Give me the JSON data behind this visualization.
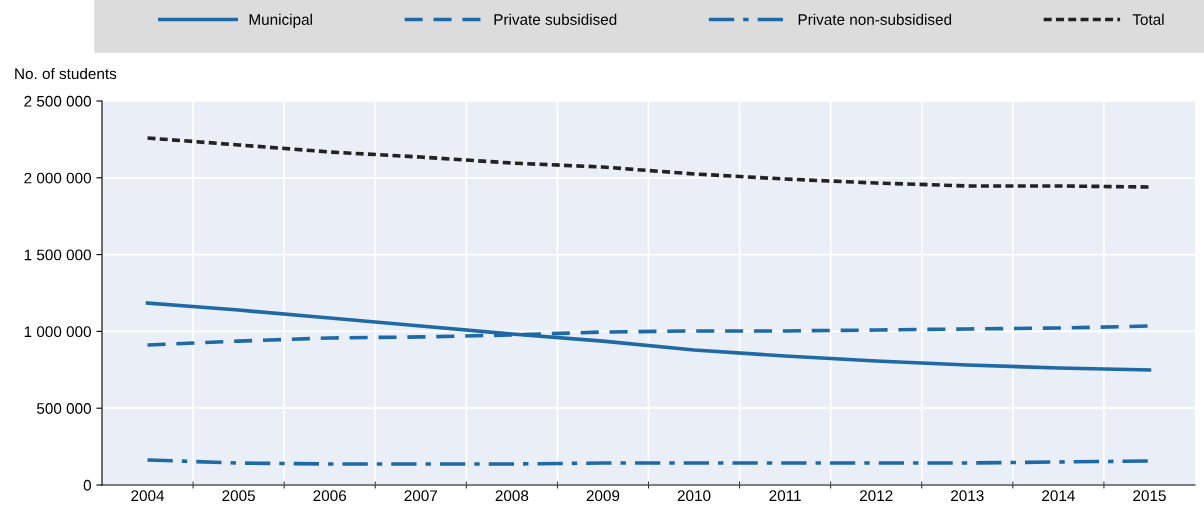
{
  "chart_data": {
    "type": "line",
    "ylabel": "No. of students",
    "categories": [
      "2004",
      "2005",
      "2006",
      "2007",
      "2008",
      "2009",
      "2010",
      "2011",
      "2012",
      "2013",
      "2014",
      "2015"
    ],
    "series": [
      {
        "name": "Municipal",
        "color": "#1f6aa5",
        "line_style": "solid",
        "values": [
          1185000,
          1139000,
          1087000,
          1035000,
          983000,
          937000,
          879000,
          840000,
          807000,
          781000,
          762000,
          749000
        ]
      },
      {
        "name": "Private subsidised",
        "color": "#1f6aa5",
        "line_style": "dashed",
        "values": [
          911000,
          937000,
          957000,
          964000,
          977000,
          996000,
          1003000,
          1003000,
          1009000,
          1016000,
          1022000,
          1035000
        ]
      },
      {
        "name": "Private non-subsidised",
        "color": "#1f6aa5",
        "line_style": "dashdot",
        "values": [
          163000,
          143000,
          137000,
          137000,
          137000,
          143000,
          143000,
          143000,
          143000,
          143000,
          150000,
          156000
        ]
      },
      {
        "name": "Total",
        "color": "#222222",
        "line_style": "dotted",
        "values": [
          2259000,
          2214000,
          2168000,
          2135000,
          2096000,
          2070000,
          2025000,
          1992000,
          1966000,
          1947000,
          1947000,
          1940000
        ]
      }
    ],
    "ylim": [
      0,
      2500000
    ],
    "yticks": [
      0,
      {
        "value": 500000,
        "label": "500 000"
      },
      {
        "value": 1000000,
        "label": "1 000 000"
      },
      {
        "value": 1500000,
        "label": "1 500 000"
      },
      {
        "value": 2000000,
        "label": "2 000 000"
      },
      {
        "value": 2500000,
        "label": "2 500 000"
      }
    ],
    "grid": true,
    "legend": "top",
    "marker": "none"
  }
}
